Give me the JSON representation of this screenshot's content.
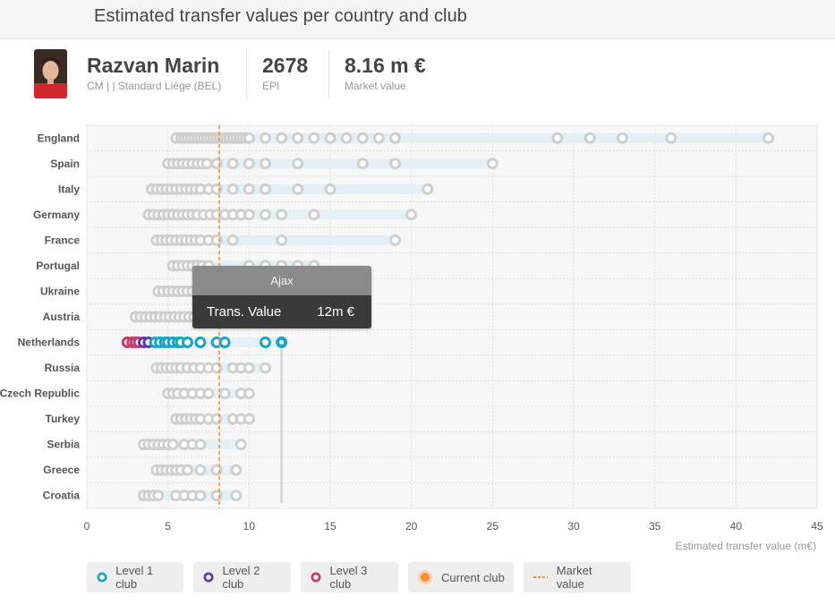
{
  "header": {
    "title": "Estimated transfer values per country and club"
  },
  "player": {
    "name": "Razvan Marin",
    "position_club": "CM | | Standard Liège (BEL)",
    "epi_value": "2678",
    "epi_label": "EPI",
    "market_value": "8.16 m €",
    "market_value_label": "Market value"
  },
  "tooltip": {
    "club": "Ajax",
    "label": "Trans. Value",
    "value": "12m €"
  },
  "legend": {
    "level1": "Level 1 club",
    "level2": "Level 2 club",
    "level3": "Level 3 club",
    "current": "Current club",
    "market": "Market value"
  },
  "colors": {
    "level1": "#1aa3c4",
    "level2": "#5c3aa8",
    "level3": "#c43a6e",
    "current": "#f0913a",
    "market_line": "#f0913a",
    "inactive_marker": "#cfcfcf",
    "range_bar": "#e4f0f5"
  },
  "chart_data": {
    "type": "scatter",
    "xlabel": "Estimated transfer value (m€)",
    "xlim": [
      0,
      45
    ],
    "xticks": [
      0,
      5,
      10,
      15,
      20,
      25,
      30,
      35,
      40,
      45
    ],
    "market_value": 8.16,
    "grid": true,
    "legend_position": "bottom",
    "highlight": {
      "country": "Netherlands",
      "club": "Ajax",
      "value": 12
    },
    "countries": [
      {
        "name": "England",
        "range": [
          5.5,
          42
        ],
        "values": [
          5.5,
          5.8,
          6.0,
          6.2,
          6.4,
          6.6,
          6.8,
          7.0,
          7.2,
          7.4,
          7.6,
          7.8,
          8.0,
          8.2,
          8.4,
          8.6,
          8.8,
          9.0,
          9.2,
          9.4,
          9.6,
          9.8,
          10,
          11,
          12,
          13,
          14,
          15,
          16,
          17,
          18,
          19,
          29,
          31,
          33,
          36,
          42
        ]
      },
      {
        "name": "Spain",
        "range": [
          5.0,
          25
        ],
        "values": [
          5.0,
          5.3,
          5.6,
          5.9,
          6.2,
          6.5,
          6.8,
          7.1,
          7.4,
          8,
          9,
          10,
          11,
          13,
          17,
          19,
          25
        ]
      },
      {
        "name": "Italy",
        "range": [
          4.0,
          21
        ],
        "values": [
          4.0,
          4.3,
          4.6,
          4.9,
          5.2,
          5.5,
          5.8,
          6.1,
          6.4,
          6.7,
          7.0,
          7.5,
          8,
          9,
          10,
          11,
          13,
          15,
          21
        ]
      },
      {
        "name": "Germany",
        "range": [
          3.8,
          20
        ],
        "values": [
          3.8,
          4.1,
          4.4,
          4.7,
          5.0,
          5.3,
          5.6,
          5.9,
          6.2,
          6.5,
          6.8,
          7.2,
          7.6,
          8,
          8.5,
          9,
          9.5,
          10,
          11,
          12,
          14,
          20
        ]
      },
      {
        "name": "France",
        "range": [
          4.3,
          19
        ],
        "values": [
          4.3,
          4.6,
          4.9,
          5.2,
          5.5,
          5.8,
          6.1,
          6.4,
          6.7,
          7,
          7.5,
          8,
          9,
          12,
          19
        ]
      },
      {
        "name": "Portugal",
        "range": [
          5.3,
          14
        ],
        "values": [
          5.3,
          5.6,
          5.9,
          6.2,
          6.5,
          6.8,
          7.1,
          7.5,
          10,
          11,
          12,
          13,
          14
        ]
      },
      {
        "name": "Ukraine",
        "range": [
          4.4,
          7.5
        ],
        "values": [
          4.4,
          4.7,
          5.0,
          5.3,
          5.6,
          5.9,
          6.2,
          6.5,
          6.8,
          7.1,
          7.5
        ]
      },
      {
        "name": "Austria",
        "range": [
          3.0,
          7.0
        ],
        "values": [
          3.0,
          3.3,
          3.6,
          3.9,
          4.2,
          4.5,
          4.8,
          5.1,
          5.4,
          5.7,
          6.0,
          6.3,
          6.6,
          7.0
        ]
      },
      {
        "name": "Netherlands",
        "range": [
          2.5,
          12
        ],
        "values": [
          2.5,
          2.8,
          3.0,
          3.2,
          3.5,
          3.8,
          4.2,
          4.5,
          4.8,
          5.0,
          5.3,
          5.6,
          5.8,
          6.2,
          7.0,
          8.0,
          8.5,
          11,
          12
        ]
      },
      {
        "name": "Russia",
        "range": [
          4.3,
          11
        ],
        "values": [
          4.3,
          4.6,
          4.9,
          5.2,
          5.5,
          5.8,
          6.2,
          6.6,
          7.0,
          7.5,
          8,
          9,
          9.5,
          10,
          11
        ]
      },
      {
        "name": "Czech Republic",
        "range": [
          5.0,
          10
        ],
        "values": [
          5.0,
          5.3,
          5.6,
          6.0,
          6.5,
          7.0,
          7.5,
          8.5,
          9.5,
          10
        ]
      },
      {
        "name": "Turkey",
        "range": [
          5.5,
          10
        ],
        "values": [
          5.5,
          5.8,
          6.1,
          6.4,
          6.7,
          7.0,
          7.5,
          8,
          9,
          9.5,
          10
        ]
      },
      {
        "name": "Serbia",
        "range": [
          3.5,
          9.5
        ],
        "values": [
          3.5,
          3.8,
          4.1,
          4.4,
          4.7,
          5.0,
          5.3,
          6,
          6.5,
          7,
          9.5
        ]
      },
      {
        "name": "Greece",
        "range": [
          4.3,
          9.2
        ],
        "values": [
          4.3,
          4.6,
          4.9,
          5.2,
          5.5,
          5.8,
          6.2,
          7,
          8,
          9.2
        ]
      },
      {
        "name": "Croatia",
        "range": [
          3.5,
          9.2
        ],
        "values": [
          3.5,
          3.8,
          4.1,
          4.4,
          5.5,
          6.0,
          6.5,
          7.0,
          8,
          9.2
        ]
      }
    ],
    "netherlands_levels": {
      "level3": [
        2.5,
        2.8,
        3.0,
        3.2
      ],
      "level2": [
        3.5,
        3.8
      ],
      "level1": [
        4.2,
        4.5,
        4.8,
        5.0,
        5.3,
        5.6,
        5.8,
        6.2,
        7.0,
        8.0,
        8.5,
        11,
        12
      ]
    }
  }
}
